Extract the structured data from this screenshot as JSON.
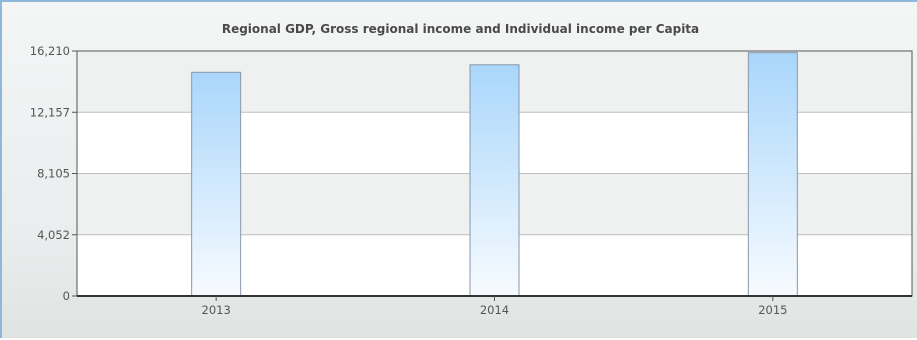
{
  "chart_data": {
    "type": "bar",
    "title": "Regional GDP, Gross regional income and Individual income per Capita",
    "categories": [
      "2013",
      "2014",
      "2015"
    ],
    "values": [
      14800,
      15300,
      16100
    ],
    "ylim": [
      0,
      16210
    ],
    "yticks": [
      "16,210",
      "12,157",
      "8,105",
      "4,052",
      "0"
    ],
    "ytick_values": [
      16210,
      12157,
      8105,
      4052,
      0
    ],
    "xlabel": "",
    "ylabel": "",
    "grid": true,
    "legend": "none",
    "bar_color_top": "#a9d6fb",
    "bar_color_bottom": "#f7fbff",
    "band_color": "#eff1f1"
  }
}
